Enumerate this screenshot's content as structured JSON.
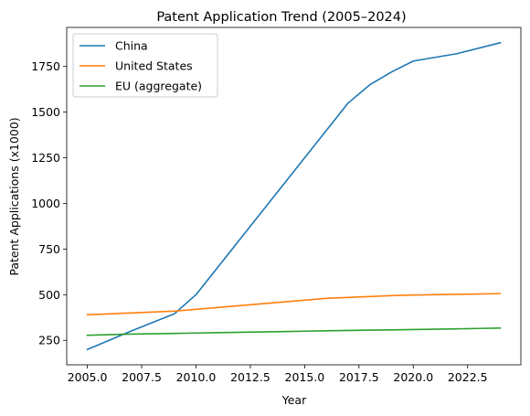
{
  "chart_data": {
    "type": "line",
    "title": "Patent Application Trend (2005–2024)",
    "xlabel": "Year",
    "ylabel": "Patent Applications (x1000)",
    "xlim": [
      2004.05,
      2024.95
    ],
    "ylim": [
      116,
      1964
    ],
    "x_ticks": [
      2005.0,
      2007.5,
      2010.0,
      2012.5,
      2015.0,
      2017.5,
      2020.0,
      2022.5
    ],
    "x_tick_labels": [
      "2005.0",
      "2007.5",
      "2010.0",
      "2012.5",
      "2015.0",
      "2017.5",
      "2020.0",
      "2022.5"
    ],
    "y_ticks": [
      250,
      500,
      750,
      1000,
      1250,
      1500,
      1750
    ],
    "y_tick_labels": [
      "250",
      "500",
      "750",
      "1000",
      "1250",
      "1500",
      "1750"
    ],
    "grid": false,
    "legend_position": "top-left",
    "series": [
      {
        "name": "China",
        "color": "#1f77b4",
        "x": [
          2005,
          2007,
          2009,
          2010,
          2017,
          2018,
          2019,
          2020,
          2022,
          2024
        ],
        "y": [
          200,
          300,
          395,
          500,
          1550,
          1650,
          1720,
          1780,
          1820,
          1880
        ]
      },
      {
        "name": "United States",
        "color": "#ff7f0e",
        "x": [
          2005,
          2006,
          2007,
          2008,
          2009,
          2010,
          2011,
          2012,
          2013,
          2014,
          2015,
          2016,
          2017,
          2018,
          2019,
          2020,
          2021,
          2022,
          2023,
          2024
        ],
        "y": [
          390,
          395,
          400,
          405,
          410,
          420,
          430,
          440,
          450,
          460,
          470,
          480,
          485,
          490,
          495,
          498,
          500,
          502,
          504,
          506
        ]
      },
      {
        "name": "EU (aggregate)",
        "color": "#2ca02c",
        "x": [
          2005,
          2006,
          2007,
          2008,
          2009,
          2010,
          2011,
          2012,
          2013,
          2014,
          2015,
          2016,
          2017,
          2018,
          2019,
          2020,
          2021,
          2022,
          2023,
          2024
        ],
        "y": [
          278,
          281,
          284,
          286,
          288,
          290,
          292,
          294,
          296,
          298,
          300,
          302,
          304,
          306,
          307,
          309,
          311,
          313,
          315,
          317
        ]
      }
    ]
  }
}
